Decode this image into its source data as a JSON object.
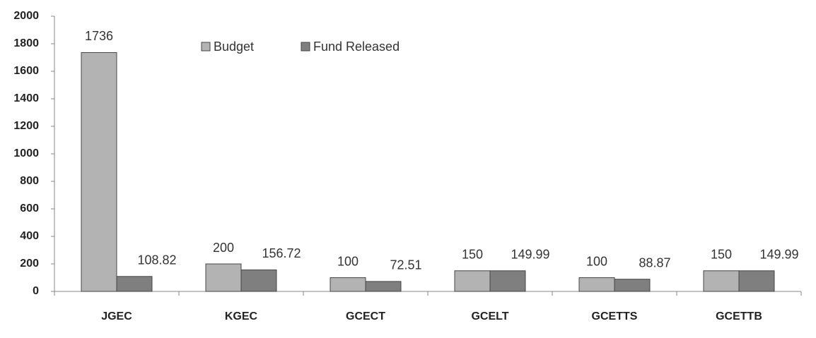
{
  "chart_data": {
    "type": "bar",
    "categories": [
      "JGEC",
      "KGEC",
      "GCECT",
      "GCELT",
      "GCETTS",
      "GCETTB"
    ],
    "series": [
      {
        "name": "Budget",
        "color": "#b3b3b3",
        "values": [
          1736,
          200,
          100,
          150,
          100,
          150
        ]
      },
      {
        "name": "Fund Released",
        "color": "#7f7f7f",
        "values": [
          108.82,
          156.72,
          72.51,
          149.99,
          88.87,
          149.99
        ]
      }
    ],
    "ylim": [
      0,
      2000
    ],
    "yticks": [
      0,
      200,
      400,
      600,
      800,
      1000,
      1200,
      1400,
      1600,
      1800,
      2000
    ],
    "grid": false
  }
}
